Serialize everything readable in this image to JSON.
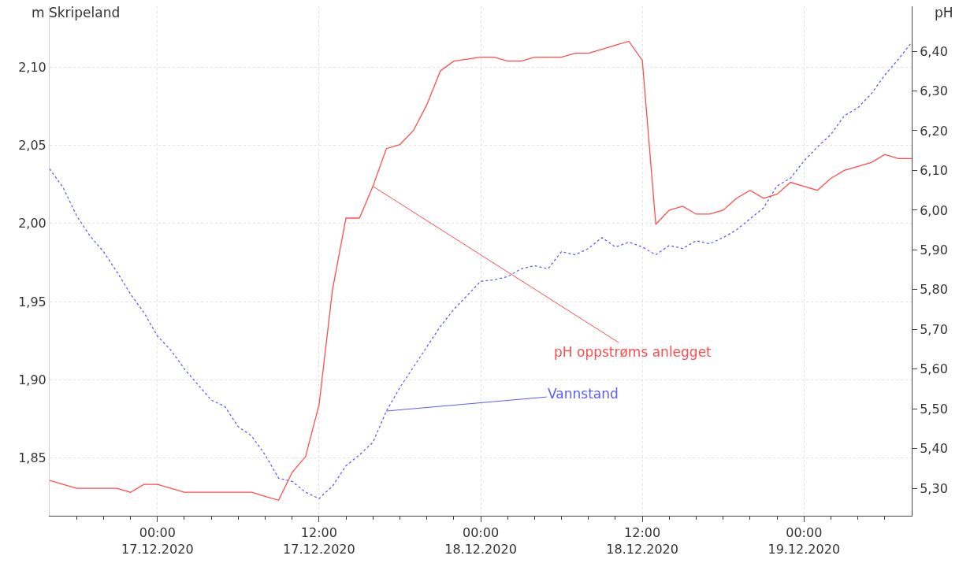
{
  "chart_data": {
    "type": "line",
    "ylabel": "m Skripeland",
    "y2label": "pH",
    "x": [
      "2020-12-16T16:00",
      "2020-12-16T17:00",
      "2020-12-16T18:00",
      "2020-12-16T19:00",
      "2020-12-16T20:00",
      "2020-12-16T21:00",
      "2020-12-16T22:00",
      "2020-12-16T23:00",
      "2020-12-17T00:00",
      "2020-12-17T01:00",
      "2020-12-17T02:00",
      "2020-12-17T03:00",
      "2020-12-17T04:00",
      "2020-12-17T05:00",
      "2020-12-17T06:00",
      "2020-12-17T07:00",
      "2020-12-17T08:00",
      "2020-12-17T09:00",
      "2020-12-17T10:00",
      "2020-12-17T11:00",
      "2020-12-17T12:00",
      "2020-12-17T13:00",
      "2020-12-17T14:00",
      "2020-12-17T15:00",
      "2020-12-17T16:00",
      "2020-12-17T17:00",
      "2020-12-17T18:00",
      "2020-12-17T19:00",
      "2020-12-17T20:00",
      "2020-12-17T21:00",
      "2020-12-17T22:00",
      "2020-12-17T23:00",
      "2020-12-18T00:00",
      "2020-12-18T01:00",
      "2020-12-18T02:00",
      "2020-12-18T03:00",
      "2020-12-18T04:00",
      "2020-12-18T05:00",
      "2020-12-18T06:00",
      "2020-12-18T07:00",
      "2020-12-18T08:00",
      "2020-12-18T09:00",
      "2020-12-18T10:00",
      "2020-12-18T11:00",
      "2020-12-18T12:00",
      "2020-12-18T13:00",
      "2020-12-18T14:00",
      "2020-12-18T15:00",
      "2020-12-18T16:00",
      "2020-12-18T17:00",
      "2020-12-18T18:00",
      "2020-12-18T19:00",
      "2020-12-18T20:00",
      "2020-12-18T21:00",
      "2020-12-18T22:00",
      "2020-12-18T23:00",
      "2020-12-19T00:00",
      "2020-12-19T01:00",
      "2020-12-19T02:00",
      "2020-12-19T03:00",
      "2020-12-19T04:00",
      "2020-12-19T05:00",
      "2020-12-19T06:00",
      "2020-12-19T07:00",
      "2020-12-19T08:00"
    ],
    "series": [
      {
        "name": "pH oppstrøms anlegget",
        "color": "#ff4d4d",
        "axis": "y2",
        "line_style": "solid",
        "values": [
          5.32,
          5.31,
          5.3,
          5.3,
          5.3,
          5.3,
          5.29,
          5.31,
          5.31,
          5.3,
          5.29,
          5.29,
          5.29,
          5.29,
          5.29,
          5.29,
          5.28,
          5.27,
          5.34,
          5.38,
          5.51,
          5.8,
          5.98,
          5.98,
          6.06,
          6.155,
          6.165,
          6.2,
          6.265,
          6.35,
          6.375,
          6.38,
          6.385,
          6.385,
          6.375,
          6.375,
          6.385,
          6.385,
          6.385,
          6.395,
          6.395,
          6.405,
          6.415,
          6.425,
          6.377,
          5.964,
          6.0,
          6.01,
          5.99,
          5.99,
          6.0,
          6.03,
          6.05,
          6.03,
          6.04,
          6.07,
          6.06,
          6.05,
          6.08,
          6.1,
          6.11,
          6.12,
          6.14,
          6.13,
          6.13
        ]
      },
      {
        "name": "Vannstand",
        "color": "#5c5cff",
        "line_style": "dotted",
        "values": [
          2.035,
          2.023,
          2.005,
          1.992,
          1.982,
          1.969,
          1.955,
          1.943,
          1.928,
          1.919,
          1.907,
          1.897,
          1.887,
          1.883,
          1.87,
          1.864,
          1.852,
          1.837,
          1.835,
          1.828,
          1.824,
          1.832,
          1.845,
          1.852,
          1.86,
          1.88,
          1.895,
          1.908,
          1.921,
          1.934,
          1.945,
          1.954,
          1.963,
          1.964,
          1.966,
          1.971,
          1.973,
          1.971,
          1.982,
          1.98,
          1.984,
          1.991,
          1.985,
          1.988,
          1.985,
          1.98,
          1.986,
          1.984,
          1.989,
          1.987,
          1.991,
          1.996,
          2.003,
          2.01,
          2.024,
          2.029,
          2.04,
          2.049,
          2.057,
          2.069,
          2.074,
          2.083,
          2.095,
          2.105,
          2.116
        ]
      }
    ],
    "xlim": [
      "2020-12-16T16:00",
      "2020-12-19T08:00"
    ],
    "xticks": [
      {
        "value": "2020-12-16T18:00",
        "label": null
      },
      {
        "value": "2020-12-16T20:00",
        "label": null
      },
      {
        "value": "2020-12-16T22:00",
        "label": null
      },
      {
        "value": "2020-12-17T00:00",
        "label": "00:00\n17.12.2020"
      },
      {
        "value": "2020-12-17T02:00",
        "label": null
      },
      {
        "value": "2020-12-17T04:00",
        "label": null
      },
      {
        "value": "2020-12-17T06:00",
        "label": null
      },
      {
        "value": "2020-12-17T08:00",
        "label": null
      },
      {
        "value": "2020-12-17T10:00",
        "label": null
      },
      {
        "value": "2020-12-17T12:00",
        "label": "12:00\n17.12.2020"
      },
      {
        "value": "2020-12-17T14:00",
        "label": null
      },
      {
        "value": "2020-12-17T16:00",
        "label": null
      },
      {
        "value": "2020-12-17T18:00",
        "label": null
      },
      {
        "value": "2020-12-17T20:00",
        "label": null
      },
      {
        "value": "2020-12-17T22:00",
        "label": null
      },
      {
        "value": "2020-12-18T00:00",
        "label": "00:00\n18.12.2020"
      },
      {
        "value": "2020-12-18T02:00",
        "label": null
      },
      {
        "value": "2020-12-18T04:00",
        "label": null
      },
      {
        "value": "2020-12-18T06:00",
        "label": null
      },
      {
        "value": "2020-12-18T08:00",
        "label": null
      },
      {
        "value": "2020-12-18T10:00",
        "label": null
      },
      {
        "value": "2020-12-18T12:00",
        "label": "12:00\n18.12.2020"
      },
      {
        "value": "2020-12-18T14:00",
        "label": null
      },
      {
        "value": "2020-12-18T16:00",
        "label": null
      },
      {
        "value": "2020-12-18T18:00",
        "label": null
      },
      {
        "value": "2020-12-18T20:00",
        "label": null
      },
      {
        "value": "2020-12-18T22:00",
        "label": null
      },
      {
        "value": "2020-12-19T00:00",
        "label": "00:00\n19.12.2020"
      },
      {
        "value": "2020-12-19T02:00",
        "label": null
      },
      {
        "value": "2020-12-19T04:00",
        "label": null
      },
      {
        "value": "2020-12-19T06:00",
        "label": null
      }
    ],
    "ylim": [
      1.813,
      2.139
    ],
    "yticks": [
      {
        "value": 1.85,
        "label": "1,85"
      },
      {
        "value": 1.9,
        "label": "1,90"
      },
      {
        "value": 1.95,
        "label": "1,95"
      },
      {
        "value": 2.0,
        "label": "2,00"
      },
      {
        "value": 2.05,
        "label": "2,05"
      },
      {
        "value": 2.1,
        "label": "2,10"
      }
    ],
    "y2lim": [
      5.231,
      6.513
    ],
    "y2ticks": [
      {
        "value": 5.3,
        "label": "5,30"
      },
      {
        "value": 5.4,
        "label": "5,40"
      },
      {
        "value": 5.5,
        "label": "5,50"
      },
      {
        "value": 5.6,
        "label": "5,60"
      },
      {
        "value": 5.7,
        "label": "5,70"
      },
      {
        "value": 5.8,
        "label": "5,80"
      },
      {
        "value": 5.9,
        "label": "5,90"
      },
      {
        "value": 6.0,
        "label": "6,00"
      },
      {
        "value": 6.1,
        "label": "6,10"
      },
      {
        "value": 6.2,
        "label": "6,20"
      },
      {
        "value": 6.3,
        "label": "6,30"
      },
      {
        "value": 6.4,
        "label": "6,40"
      }
    ],
    "grid": true,
    "marker": "none"
  }
}
